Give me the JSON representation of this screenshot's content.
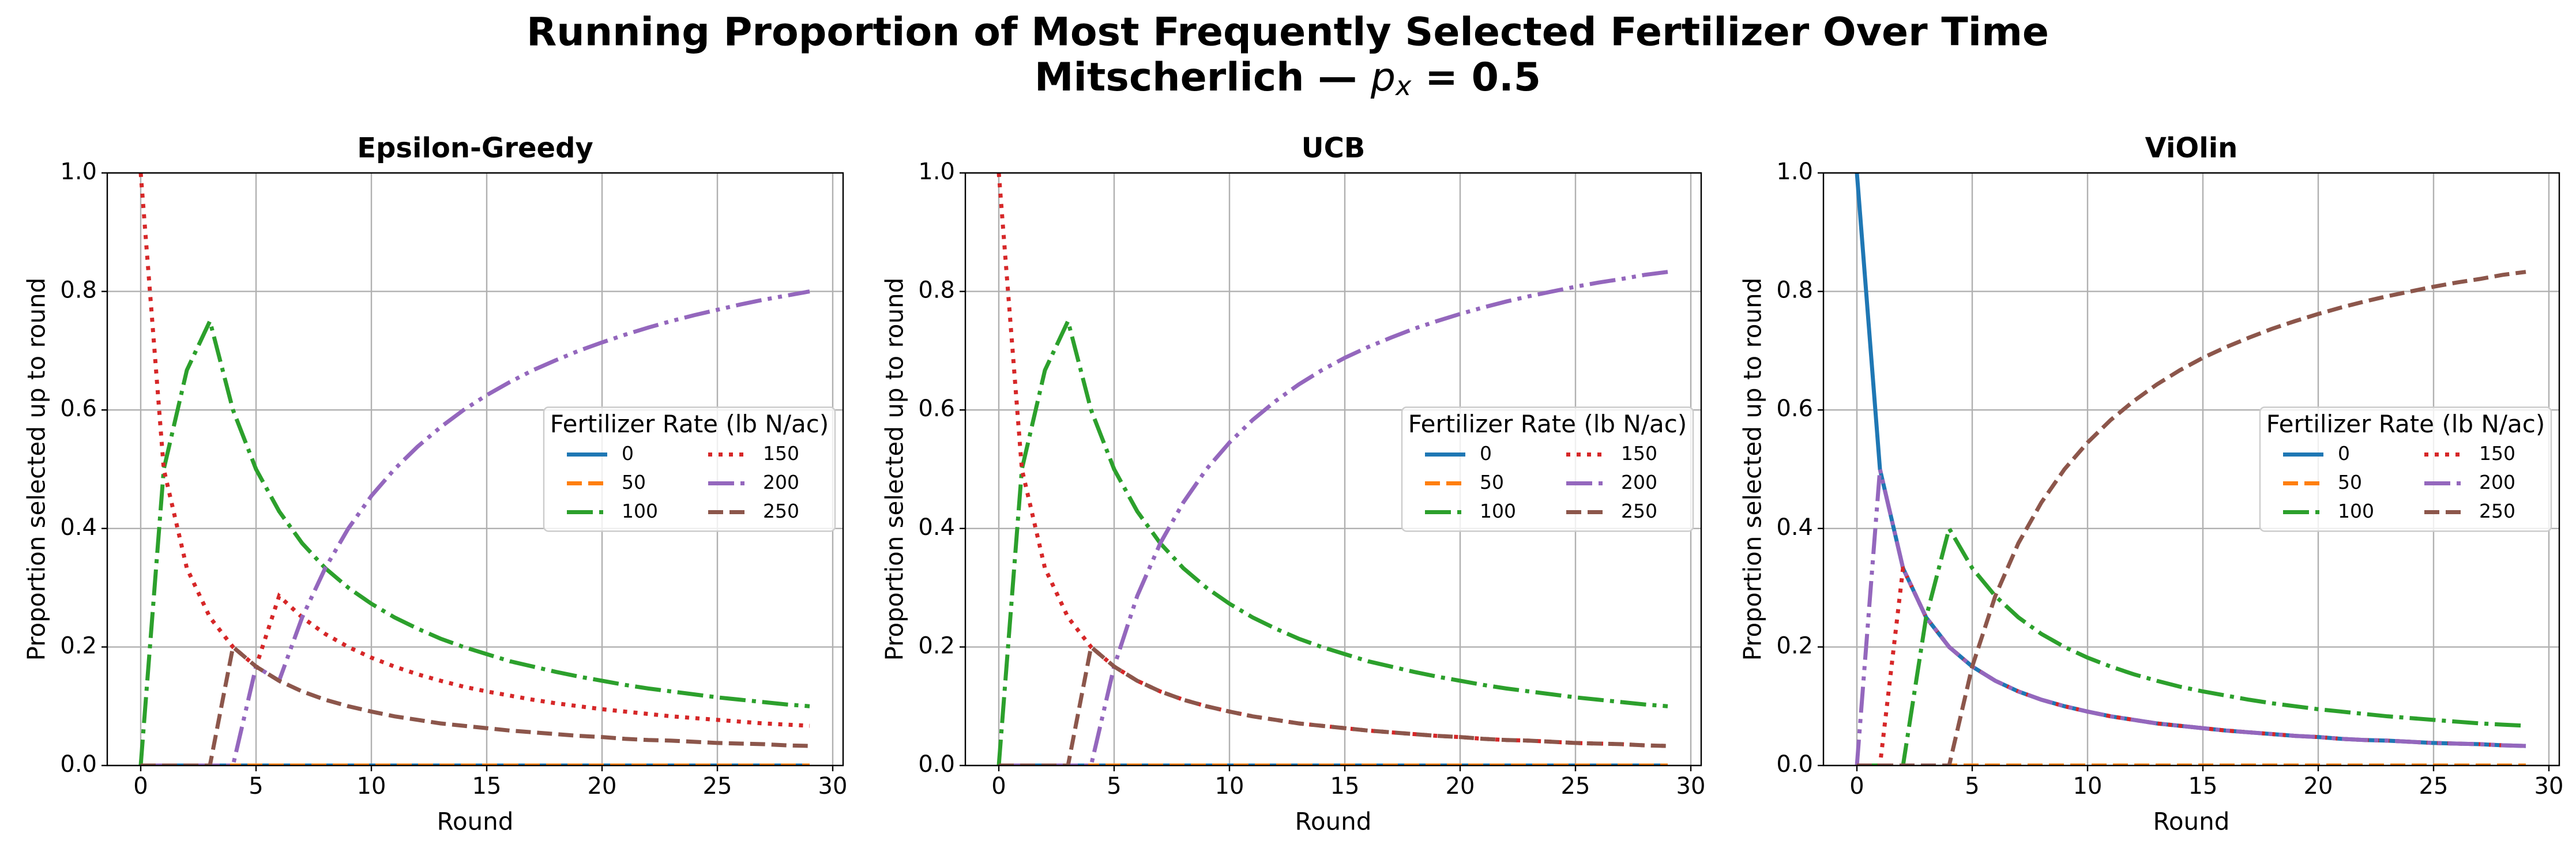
{
  "title": "Running Proportion of Most Frequently Selected Fertilizer Over Time",
  "subtitle": [
    "Mitscherlich — ",
    "p",
    "x",
    " = 0.5"
  ],
  "chart_data": [
    {
      "type": "line",
      "title": "Epsilon-Greedy",
      "xlabel": "Round",
      "ylabel": "Proportion selected up to round",
      "x": [
        0,
        1,
        2,
        3,
        4,
        5,
        6,
        7,
        8,
        9,
        10,
        11,
        12,
        13,
        14,
        15,
        16,
        17,
        18,
        19,
        20,
        21,
        22,
        23,
        24,
        25,
        26,
        27,
        28,
        29
      ],
      "xlim": [
        -1.45,
        30.45
      ],
      "xticks": [
        0,
        5,
        10,
        15,
        20,
        25,
        30
      ],
      "ylim": [
        0,
        1
      ],
      "yticks": [
        {
          "value": 0,
          "label": "0.0"
        },
        0.2,
        0.4,
        0.6,
        0.8,
        {
          "value": 1,
          "label": "1.0"
        }
      ],
      "grid": true,
      "legend": "center right",
      "legend_title": "Fertilizer Rate (lb N/ac)",
      "series": [
        {
          "name": "0",
          "color": "#1f77b4",
          "linestyle": "solid",
          "values": [
            0,
            0,
            0,
            0,
            0,
            0,
            0,
            0,
            0,
            0,
            0,
            0,
            0,
            0,
            0,
            0,
            0,
            0,
            0,
            0,
            0,
            0,
            0,
            0,
            0,
            0,
            0,
            0,
            0,
            0
          ]
        },
        {
          "name": "50",
          "color": "#ff7f0e",
          "linestyle": "dashed",
          "values": [
            0,
            0,
            0,
            0,
            0,
            0,
            0,
            0,
            0,
            0,
            0,
            0,
            0,
            0,
            0,
            0,
            0,
            0,
            0,
            0,
            0,
            0,
            0,
            0,
            0,
            0,
            0,
            0,
            0,
            0
          ]
        },
        {
          "name": "100",
          "color": "#2ca02c",
          "linestyle": "dashdot",
          "values": [
            0,
            0.5,
            0.667,
            0.75,
            0.6,
            0.5,
            0.429,
            0.375,
            0.333,
            0.3,
            0.273,
            0.25,
            0.231,
            0.214,
            0.2,
            0.188,
            0.176,
            0.167,
            0.158,
            0.15,
            0.143,
            0.136,
            0.13,
            0.125,
            0.12,
            0.115,
            0.111,
            0.107,
            0.103,
            0.1
          ]
        },
        {
          "name": "150",
          "color": "#d62728",
          "linestyle": "dotted",
          "values": [
            1,
            0.5,
            0.333,
            0.25,
            0.2,
            0.167,
            0.286,
            0.25,
            0.222,
            0.2,
            0.182,
            0.167,
            0.154,
            0.143,
            0.133,
            0.125,
            0.118,
            0.111,
            0.105,
            0.1,
            0.095,
            0.091,
            0.087,
            0.083,
            0.08,
            0.077,
            0.074,
            0.071,
            0.069,
            0.067
          ]
        },
        {
          "name": "200",
          "color": "#9467bd",
          "linestyle": "dashdotdot",
          "values": [
            0,
            0,
            0,
            0,
            0,
            0.167,
            0.143,
            0.25,
            0.333,
            0.4,
            0.455,
            0.5,
            0.538,
            0.571,
            0.6,
            0.625,
            0.647,
            0.667,
            0.684,
            0.7,
            0.714,
            0.727,
            0.739,
            0.75,
            0.76,
            0.769,
            0.778,
            0.786,
            0.793,
            0.8
          ]
        },
        {
          "name": "250",
          "color": "#8c564b",
          "linestyle": "dashed",
          "values": [
            0,
            0,
            0,
            0,
            0.2,
            0.167,
            0.143,
            0.125,
            0.111,
            0.1,
            0.091,
            0.083,
            0.077,
            0.071,
            0.067,
            0.063,
            0.059,
            0.056,
            0.053,
            0.05,
            0.048,
            0.045,
            0.043,
            0.042,
            0.04,
            0.038,
            0.037,
            0.036,
            0.034,
            0.033
          ]
        }
      ]
    },
    {
      "type": "line",
      "title": "UCB",
      "xlabel": "Round",
      "ylabel": "Proportion selected up to round",
      "x": [
        0,
        1,
        2,
        3,
        4,
        5,
        6,
        7,
        8,
        9,
        10,
        11,
        12,
        13,
        14,
        15,
        16,
        17,
        18,
        19,
        20,
        21,
        22,
        23,
        24,
        25,
        26,
        27,
        28,
        29
      ],
      "xlim": [
        -1.45,
        30.45
      ],
      "xticks": [
        0,
        5,
        10,
        15,
        20,
        25,
        30
      ],
      "ylim": [
        0,
        1
      ],
      "yticks": [
        {
          "value": 0,
          "label": "0.0"
        },
        0.2,
        0.4,
        0.6,
        0.8,
        {
          "value": 1,
          "label": "1.0"
        }
      ],
      "grid": true,
      "legend": "center right",
      "legend_title": "Fertilizer Rate (lb N/ac)",
      "series": [
        {
          "name": "0",
          "color": "#1f77b4",
          "linestyle": "solid",
          "values": [
            0,
            0,
            0,
            0,
            0,
            0,
            0,
            0,
            0,
            0,
            0,
            0,
            0,
            0,
            0,
            0,
            0,
            0,
            0,
            0,
            0,
            0,
            0,
            0,
            0,
            0,
            0,
            0,
            0,
            0
          ]
        },
        {
          "name": "50",
          "color": "#ff7f0e",
          "linestyle": "dashed",
          "values": [
            0,
            0,
            0,
            0,
            0,
            0,
            0,
            0,
            0,
            0,
            0,
            0,
            0,
            0,
            0,
            0,
            0,
            0,
            0,
            0,
            0,
            0,
            0,
            0,
            0,
            0,
            0,
            0,
            0,
            0
          ]
        },
        {
          "name": "100",
          "color": "#2ca02c",
          "linestyle": "dashdot",
          "values": [
            0,
            0.5,
            0.667,
            0.75,
            0.6,
            0.5,
            0.429,
            0.375,
            0.333,
            0.3,
            0.273,
            0.25,
            0.231,
            0.214,
            0.2,
            0.188,
            0.176,
            0.167,
            0.158,
            0.15,
            0.143,
            0.136,
            0.13,
            0.125,
            0.12,
            0.115,
            0.111,
            0.107,
            0.103,
            0.1
          ]
        },
        {
          "name": "150",
          "color": "#d62728",
          "linestyle": "dotted",
          "values": [
            1,
            0.5,
            0.333,
            0.25,
            0.2,
            0.167,
            0.143,
            0.125,
            0.111,
            0.1,
            0.091,
            0.083,
            0.077,
            0.071,
            0.067,
            0.063,
            0.059,
            0.056,
            0.053,
            0.05,
            0.048,
            0.045,
            0.043,
            0.042,
            0.04,
            0.038,
            0.037,
            0.036,
            0.034,
            0.033
          ]
        },
        {
          "name": "200",
          "color": "#9467bd",
          "linestyle": "dashdotdot",
          "values": [
            0,
            0,
            0,
            0,
            0,
            0.167,
            0.286,
            0.375,
            0.444,
            0.5,
            0.545,
            0.583,
            0.615,
            0.643,
            0.667,
            0.688,
            0.706,
            0.722,
            0.737,
            0.75,
            0.762,
            0.773,
            0.783,
            0.792,
            0.8,
            0.808,
            0.815,
            0.821,
            0.828,
            0.833
          ]
        },
        {
          "name": "250",
          "color": "#8c564b",
          "linestyle": "dashed",
          "values": [
            0,
            0,
            0,
            0,
            0.2,
            0.167,
            0.143,
            0.125,
            0.111,
            0.1,
            0.091,
            0.083,
            0.077,
            0.071,
            0.067,
            0.063,
            0.059,
            0.056,
            0.053,
            0.05,
            0.048,
            0.045,
            0.043,
            0.042,
            0.04,
            0.038,
            0.037,
            0.036,
            0.034,
            0.033
          ]
        }
      ]
    },
    {
      "type": "line",
      "title": "ViOlin",
      "xlabel": "Round",
      "ylabel": "Proportion selected up to round",
      "x": [
        0,
        1,
        2,
        3,
        4,
        5,
        6,
        7,
        8,
        9,
        10,
        11,
        12,
        13,
        14,
        15,
        16,
        17,
        18,
        19,
        20,
        21,
        22,
        23,
        24,
        25,
        26,
        27,
        28,
        29
      ],
      "xlim": [
        -1.45,
        30.45
      ],
      "xticks": [
        0,
        5,
        10,
        15,
        20,
        25,
        30
      ],
      "ylim": [
        0,
        1
      ],
      "yticks": [
        {
          "value": 0,
          "label": "0.0"
        },
        0.2,
        0.4,
        0.6,
        0.8,
        {
          "value": 1,
          "label": "1.0"
        }
      ],
      "grid": true,
      "legend": "center right",
      "legend_title": "Fertilizer Rate (lb N/ac)",
      "series": [
        {
          "name": "0",
          "color": "#1f77b4",
          "linestyle": "solid",
          "values": [
            1,
            0.5,
            0.333,
            0.25,
            0.2,
            0.167,
            0.143,
            0.125,
            0.111,
            0.1,
            0.091,
            0.083,
            0.077,
            0.071,
            0.067,
            0.063,
            0.059,
            0.056,
            0.053,
            0.05,
            0.048,
            0.045,
            0.043,
            0.042,
            0.04,
            0.038,
            0.037,
            0.036,
            0.034,
            0.033
          ]
        },
        {
          "name": "50",
          "color": "#ff7f0e",
          "linestyle": "dashed",
          "values": [
            0,
            0,
            0,
            0,
            0,
            0,
            0,
            0,
            0,
            0,
            0,
            0,
            0,
            0,
            0,
            0,
            0,
            0,
            0,
            0,
            0,
            0,
            0,
            0,
            0,
            0,
            0,
            0,
            0,
            0
          ]
        },
        {
          "name": "100",
          "color": "#2ca02c",
          "linestyle": "dashdot",
          "values": [
            0,
            0,
            0,
            0.25,
            0.4,
            0.333,
            0.286,
            0.25,
            0.222,
            0.2,
            0.182,
            0.167,
            0.154,
            0.143,
            0.133,
            0.125,
            0.118,
            0.111,
            0.105,
            0.1,
            0.095,
            0.091,
            0.087,
            0.083,
            0.08,
            0.077,
            0.074,
            0.071,
            0.069,
            0.067
          ]
        },
        {
          "name": "150",
          "color": "#d62728",
          "linestyle": "dotted",
          "values": [
            0,
            0,
            0.333,
            0.25,
            0.2,
            0.167,
            0.143,
            0.125,
            0.111,
            0.1,
            0.091,
            0.083,
            0.077,
            0.071,
            0.067,
            0.063,
            0.059,
            0.056,
            0.053,
            0.05,
            0.048,
            0.045,
            0.043,
            0.042,
            0.04,
            0.038,
            0.037,
            0.036,
            0.034,
            0.033
          ]
        },
        {
          "name": "200",
          "color": "#9467bd",
          "linestyle": "dashdotdot",
          "values": [
            0,
            0.5,
            0.333,
            0.25,
            0.2,
            0.167,
            0.143,
            0.125,
            0.111,
            0.1,
            0.091,
            0.083,
            0.077,
            0.071,
            0.067,
            0.063,
            0.059,
            0.056,
            0.053,
            0.05,
            0.048,
            0.045,
            0.043,
            0.042,
            0.04,
            0.038,
            0.037,
            0.036,
            0.034,
            0.033
          ]
        },
        {
          "name": "250",
          "color": "#8c564b",
          "linestyle": "dashed",
          "values": [
            0,
            0,
            0,
            0,
            0,
            0.167,
            0.286,
            0.375,
            0.444,
            0.5,
            0.545,
            0.583,
            0.615,
            0.643,
            0.667,
            0.688,
            0.706,
            0.722,
            0.737,
            0.75,
            0.762,
            0.773,
            0.783,
            0.792,
            0.8,
            0.808,
            0.815,
            0.821,
            0.828,
            0.833
          ]
        }
      ]
    }
  ]
}
